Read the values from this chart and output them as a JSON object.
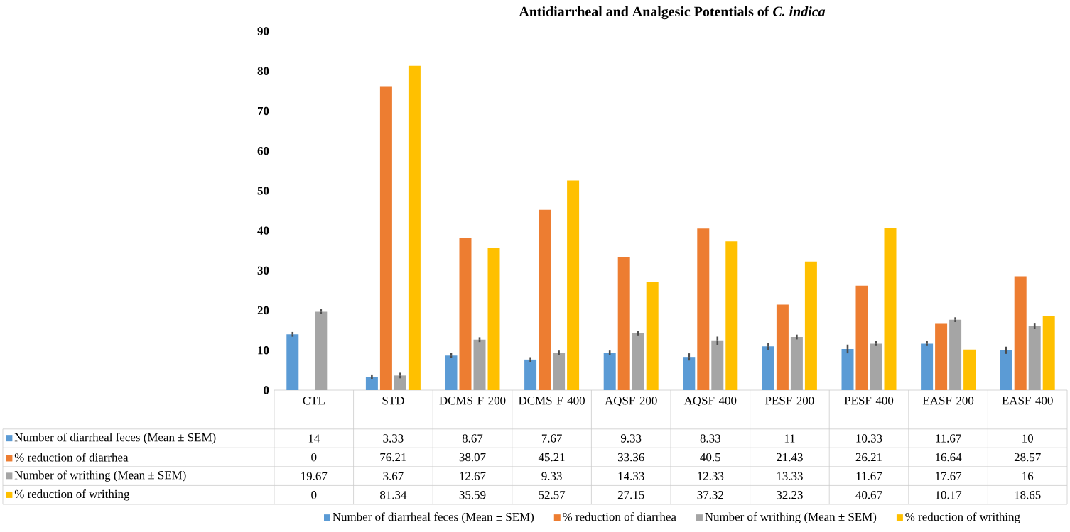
{
  "chart_data": {
    "type": "bar",
    "title": "Antidiarrheal and Analgesic Potentials of *C. indica*",
    "categories": [
      "CTL",
      "STD",
      "DCMS F 200",
      "DCMS F 400",
      "AQSF 200",
      "AQSF 400",
      "PESF 200",
      "PESF 400",
      "EASF 200",
      "EASF 400"
    ],
    "series": [
      {
        "name": "Number of diarrheal feces (Mean ± SEM)",
        "color": "#5b9bd5",
        "values": [
          14,
          3.33,
          8.67,
          7.67,
          9.33,
          8.33,
          11,
          10.33,
          11.67,
          10
        ],
        "errors": [
          0.6,
          0.6,
          0.6,
          0.6,
          0.6,
          0.9,
          0.9,
          1.1,
          0.6,
          0.9
        ]
      },
      {
        "name": "% reduction of diarrhea",
        "color": "#ed7d31",
        "values": [
          0,
          76.21,
          38.07,
          45.21,
          33.36,
          40.5,
          21.43,
          26.21,
          16.64,
          28.57
        ]
      },
      {
        "name": "Number of writhing (Mean ± SEM)",
        "color": "#a5a5a5",
        "values": [
          19.67,
          3.67,
          12.67,
          9.33,
          14.33,
          12.33,
          13.33,
          11.67,
          17.67,
          16
        ],
        "errors": [
          0.6,
          0.7,
          0.6,
          0.6,
          0.6,
          1.1,
          0.6,
          0.6,
          0.6,
          0.7
        ]
      },
      {
        "name": "% reduction of writhing",
        "color": "#ffc000",
        "values": [
          0,
          81.34,
          35.59,
          52.57,
          27.15,
          37.32,
          32.23,
          40.67,
          10.17,
          18.65
        ]
      }
    ],
    "ylim": [
      0,
      90
    ],
    "yticks": [
      0,
      10,
      20,
      30,
      40,
      50,
      60,
      70,
      80,
      90
    ],
    "data_labels": true,
    "legend": "bottom"
  }
}
